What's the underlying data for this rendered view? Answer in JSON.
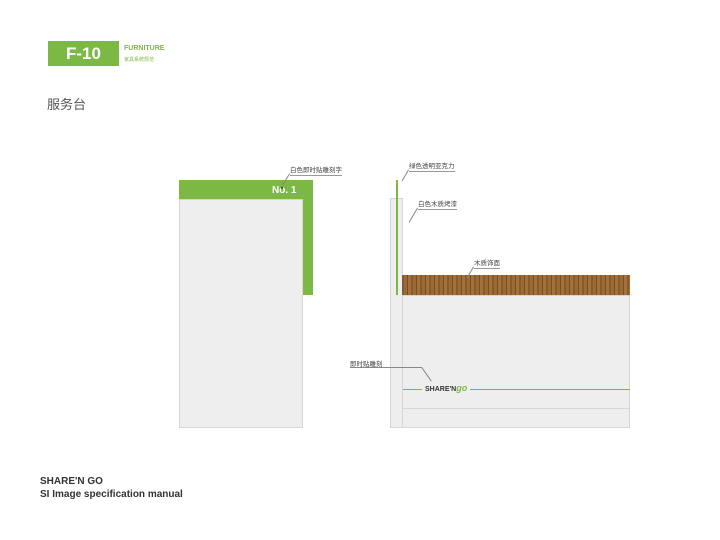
{
  "header": {
    "code": "F-10",
    "category": "FURNITURE",
    "category_sub": "家具系统规范",
    "title": "服务台"
  },
  "left_panel": {
    "number": "No. 1",
    "label": "白色即时贴雕刻字"
  },
  "right_panel": {
    "label_acrylic": "绿色透明亚克力",
    "label_paint": "白色木质烤漆",
    "label_wood": "木质饰面",
    "label_sticker": "即时贴雕刻",
    "logo_text": "SHARE'N",
    "logo_go": "go"
  },
  "footer": {
    "brand": "SHARE'N GO",
    "subtitle": "SI Image specification manual"
  },
  "colors": {
    "accent": "#7cb944",
    "panel": "#eeeeee",
    "wood": "#8a5a2b"
  }
}
